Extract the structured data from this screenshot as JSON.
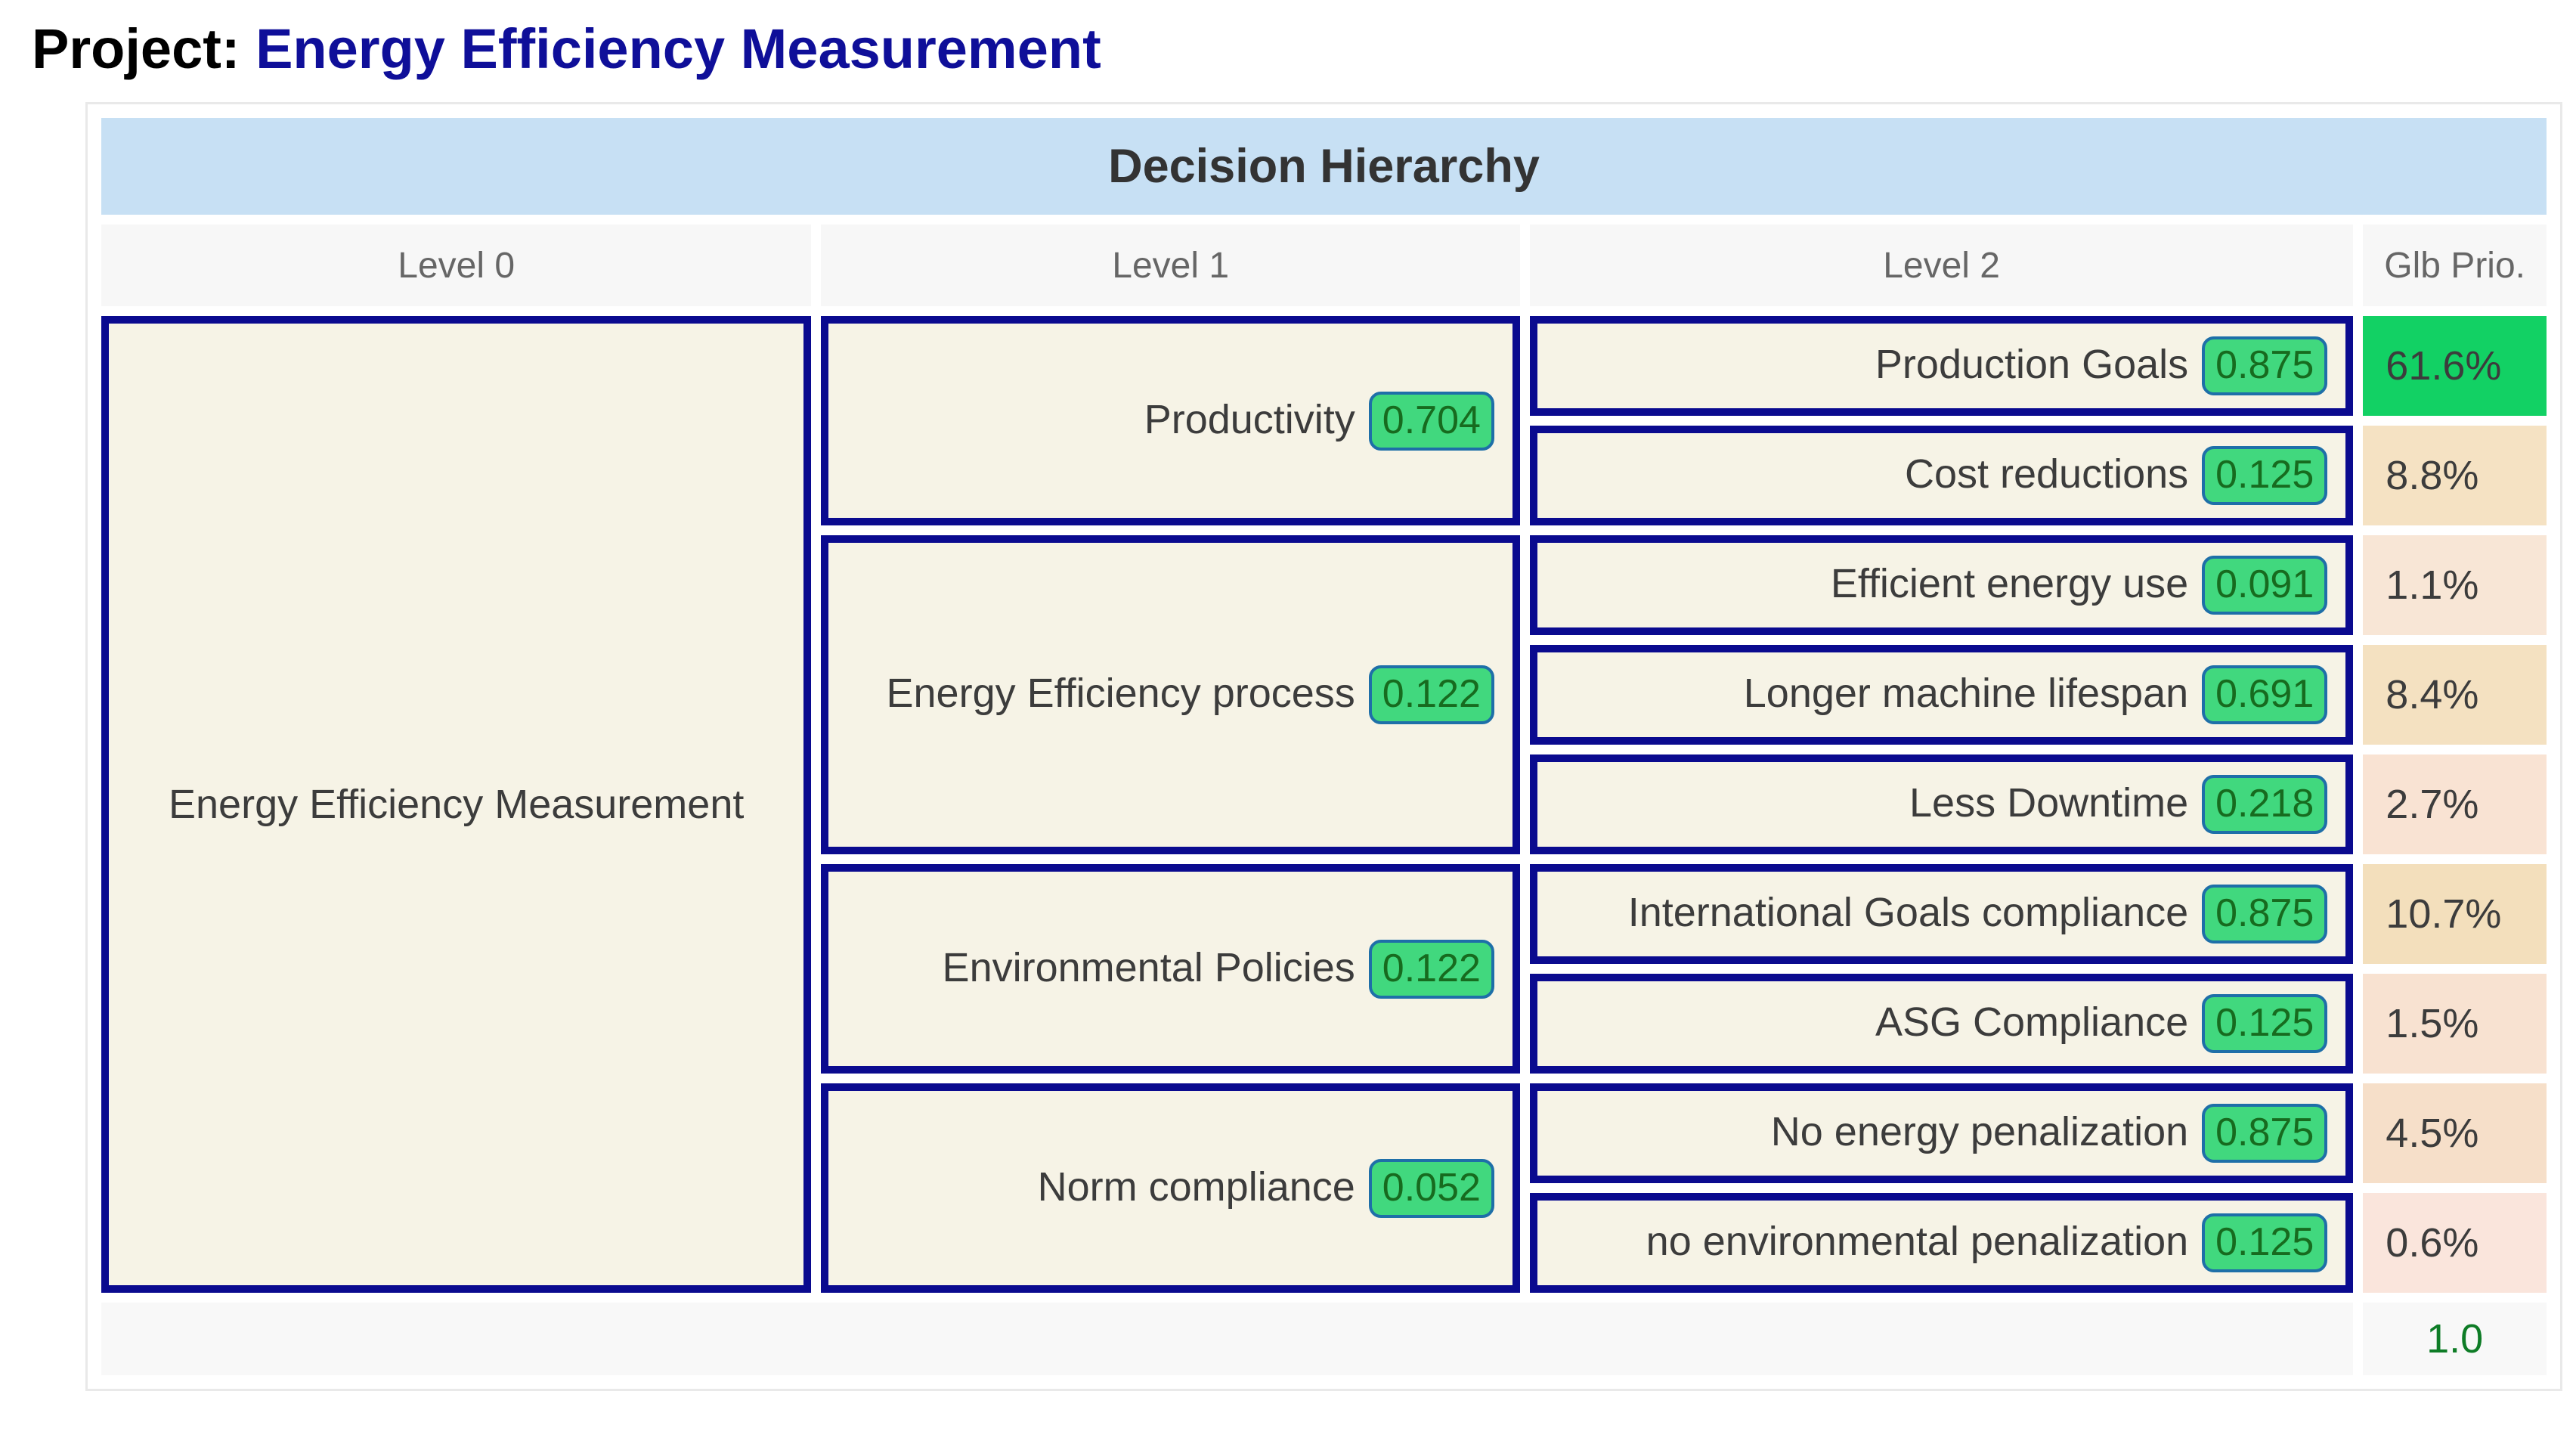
{
  "title": {
    "prefix": "Project:",
    "project_name": "Energy Efficiency Measurement"
  },
  "table": {
    "caption": "Decision Hierarchy",
    "columns": [
      "Level 0",
      "Level 1",
      "Level 2",
      "Glb Prio."
    ],
    "root": {
      "label": "Energy Efficiency Measurement"
    },
    "groups": [
      {
        "label": "Productivity",
        "priority": "0.704",
        "children": [
          {
            "label": "Production Goals",
            "priority": "0.875",
            "global": "61.6%",
            "color": "#12d164"
          },
          {
            "label": "Cost reductions",
            "priority": "0.125",
            "global": "8.8%",
            "color": "#f5e2c3"
          }
        ]
      },
      {
        "label": "Energy Efficiency process",
        "priority": "0.122",
        "children": [
          {
            "label": "Efficient energy use",
            "priority": "0.091",
            "global": "1.1%",
            "color": "#f8e6d6"
          },
          {
            "label": "Longer machine lifespan",
            "priority": "0.691",
            "global": "8.4%",
            "color": "#f4e1c1"
          },
          {
            "label": "Less Downtime",
            "priority": "0.218",
            "global": "2.7%",
            "color": "#f9e3d3"
          }
        ]
      },
      {
        "label": "Environmental Policies",
        "priority": "0.122",
        "children": [
          {
            "label": "International Goals compliance",
            "priority": "0.875",
            "global": "10.7%",
            "color": "#f3dfbc"
          },
          {
            "label": "ASG Compliance",
            "priority": "0.125",
            "global": "1.5%",
            "color": "#f8e2d1"
          }
        ]
      },
      {
        "label": "Norm compliance",
        "priority": "0.052",
        "children": [
          {
            "label": "No energy penalization",
            "priority": "0.875",
            "global": "4.5%",
            "color": "#f6dfc9"
          },
          {
            "label": "no environmental penalization",
            "priority": "0.125",
            "global": "0.6%",
            "color": "#fae5dc"
          }
        ]
      }
    ],
    "total": {
      "label": "1.0"
    },
    "colors": {
      "accent_navy_border": "#0a0a8f",
      "cell_background": "#f6f3e6",
      "caption_background": "#c7e0f4",
      "badge_background": "#41d87e",
      "badge_border": "#1e6fa8",
      "badge_text": "#176b1f",
      "top_priority_green": "#12d164",
      "total_text_green": "#0e7c26",
      "project_name_blue": "#0f0f99"
    }
  }
}
